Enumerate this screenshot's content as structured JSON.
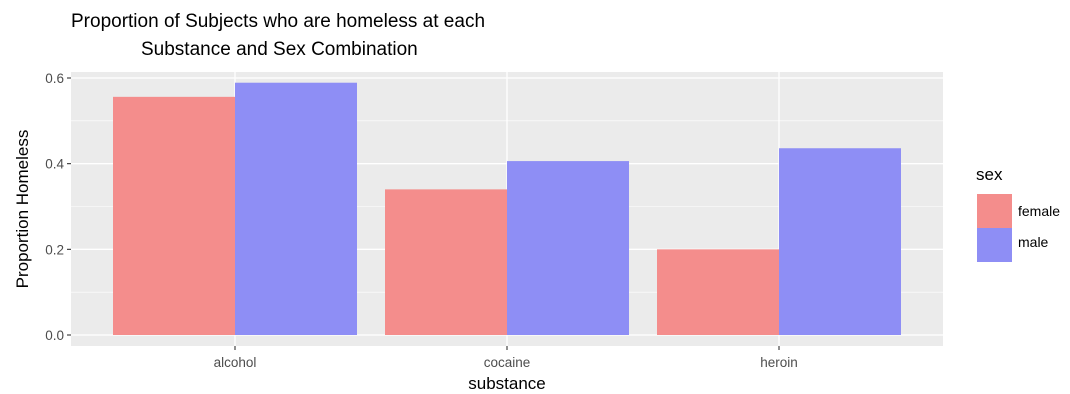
{
  "chart_data": {
    "type": "bar",
    "title_lines": [
      "Proportion of Subjects who are homeless at each",
      "Substance and Sex Combination"
    ],
    "xlabel": "substance",
    "ylabel": "Proportion Homeless",
    "categories": [
      "alcohol",
      "cocaine",
      "heroin"
    ],
    "series": [
      {
        "name": "female",
        "values": [
          0.556,
          0.34,
          0.2
        ],
        "color": "#F8766D"
      },
      {
        "name": "male",
        "values": [
          0.589,
          0.406,
          0.436
        ],
        "color": "#619CFF"
      }
    ],
    "bar_colors_rendered": {
      "female": "#F48D8C",
      "male": "#8E8EF5"
    },
    "ylim": [
      0,
      0.6
    ],
    "yticks": [
      0.0,
      0.2,
      0.4,
      0.6
    ],
    "ytick_labels": [
      "0.0",
      "0.2",
      "0.4",
      "0.6"
    ],
    "grid": true,
    "panel_background": "#EBEBEB",
    "legend": {
      "title": "sex",
      "position": "right",
      "entries": [
        "female",
        "male"
      ]
    }
  }
}
